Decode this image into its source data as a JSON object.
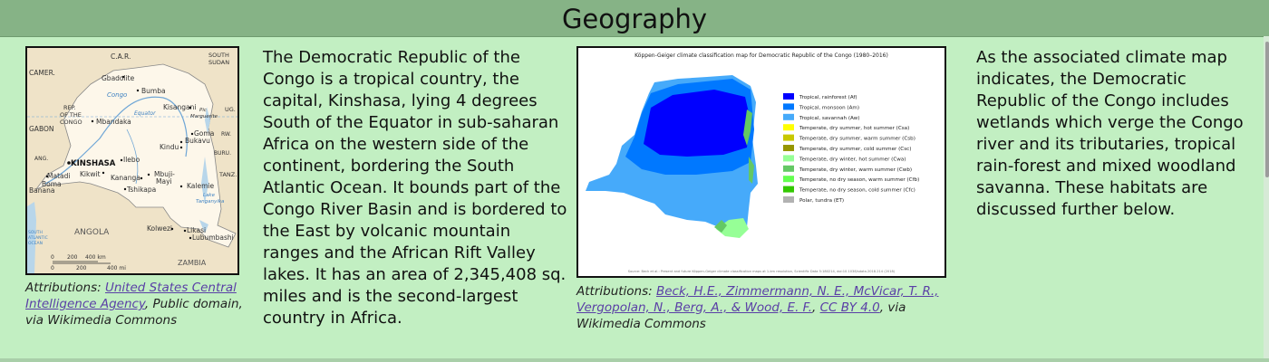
{
  "header": {
    "title": "Geography"
  },
  "map1": {
    "labels": {
      "car": "C.A.R.",
      "south_sudan_1": "SOUTH",
      "south_sudan_2": "SUDAN",
      "cameroon": "CAMER.",
      "gbadolite": "Gbadolite",
      "bumba": "Bumba",
      "congo_river": "Congo",
      "rep_1": "REP.",
      "rep_2": "OF THE",
      "rep_3": "CONGO",
      "gabon": "GABON",
      "mbandaka": "Mbandaka",
      "equator": "Equator",
      "kisangani": "Kisangani",
      "pic": "Pic",
      "marguerite": "Marguerite",
      "ug": "UG.",
      "goma": "Goma",
      "bukavu": "Bukavu",
      "kindu": "Kindu",
      "rw": "RW.",
      "buru": "BURU.",
      "kinshasa": "KINSHASA",
      "ilebo": "Ilebo",
      "ang": "ANG.",
      "matadi": "Matadi",
      "kikwit": "Kikwit",
      "kananga": "Kananga",
      "mbuji_1": "Mbuji-",
      "mbuji_2": "Mayi",
      "boma": "Boma",
      "banana": "Banana",
      "tshikapa": "Tshikapa",
      "kalemie": "Kalemie",
      "tanz": "TANZ.",
      "lake_1": "Lake",
      "lake_2": "Tanganyika",
      "south_atlantic_1": "SOUTH",
      "south_atlantic_2": "ATLANTIC",
      "south_atlantic_3": "OCEAN",
      "angola": "ANGOLA",
      "kolwezi": "Kolwezi",
      "likasi": "Likasi",
      "lubumbashi": "Lubumbashi",
      "zambia": "ZAMBIA",
      "scale_km_0": "0",
      "scale_km_1": "200",
      "scale_km_2": "400 km",
      "scale_mi_0": "0",
      "scale_mi_1": "200",
      "scale_mi_2": "400 mi"
    }
  },
  "caption1": {
    "prefix": "Attributions: ",
    "link": "United States Central Intelligence Agency",
    "suffix": ", Public domain, via Wikimedia Commons"
  },
  "paragraph1": "The Democratic Republic of the Congo is a tropical country, the capital, Kinshasa, lying 4 degrees South of the Equator in sub-saharan Africa on the western side of the continent, bordering the South Atlantic Ocean. It bounds part of the Congo River Basin and is bordered to the East by volcanic mountain ranges and the African Rift Valley lakes. It has an area of 2,345,408 sq. miles and is the second-largest country in Africa.",
  "map2": {
    "title": "Köppen-Geiger climate classification map for Democratic Republic of the Congo (1980–2016)",
    "legend": [
      {
        "label": "Tropical, rainforest (Af)",
        "color": "#0000ff"
      },
      {
        "label": "Tropical, monsoon (Am)",
        "color": "#0078ff"
      },
      {
        "label": "Tropical, savannah (Aw)",
        "color": "#46aafa"
      },
      {
        "label": "Temperate, dry summer, hot summer (Csa)",
        "color": "#ffff00"
      },
      {
        "label": "Temperate, dry summer, warm summer (Csb)",
        "color": "#c8c800"
      },
      {
        "label": "Temperate, dry summer, cold summer (Csc)",
        "color": "#969600"
      },
      {
        "label": "Temperate, dry winter, hot summer (Cwa)",
        "color": "#96ff96"
      },
      {
        "label": "Temperate, dry winter, warm summer (Cwb)",
        "color": "#64c864"
      },
      {
        "label": "Temperate, no dry season, warm summer (Cfb)",
        "color": "#64ff50"
      },
      {
        "label": "Temperate, no dry season, cold summer (Cfc)",
        "color": "#32c800"
      },
      {
        "label": "Polar, tundra (ET)",
        "color": "#b2b2b2"
      }
    ],
    "source": "Source: Beck et al.: Present and future Köppen-Geiger climate classification maps at 1-km resolution, Scientific Data 5:180214, doi:10.1038/sdata.2018.214 (2018)"
  },
  "caption2": {
    "prefix": "Attributions: ",
    "link1": "Beck, H.E., Zimmermann, N. E., McVicar, T. R., Vergopolan, N., Berg, A., & Wood, E. F.",
    "sep": ", ",
    "link2": "CC BY 4.0",
    "suffix": ", via Wikimedia Commons"
  },
  "paragraph2": "As the associated climate map indicates, the Democratic Republic of the Congo includes wetlands which verge the Congo river and its tributaries, tropical rain-forest and mixed woodland savanna. These habitats are discussed further below."
}
